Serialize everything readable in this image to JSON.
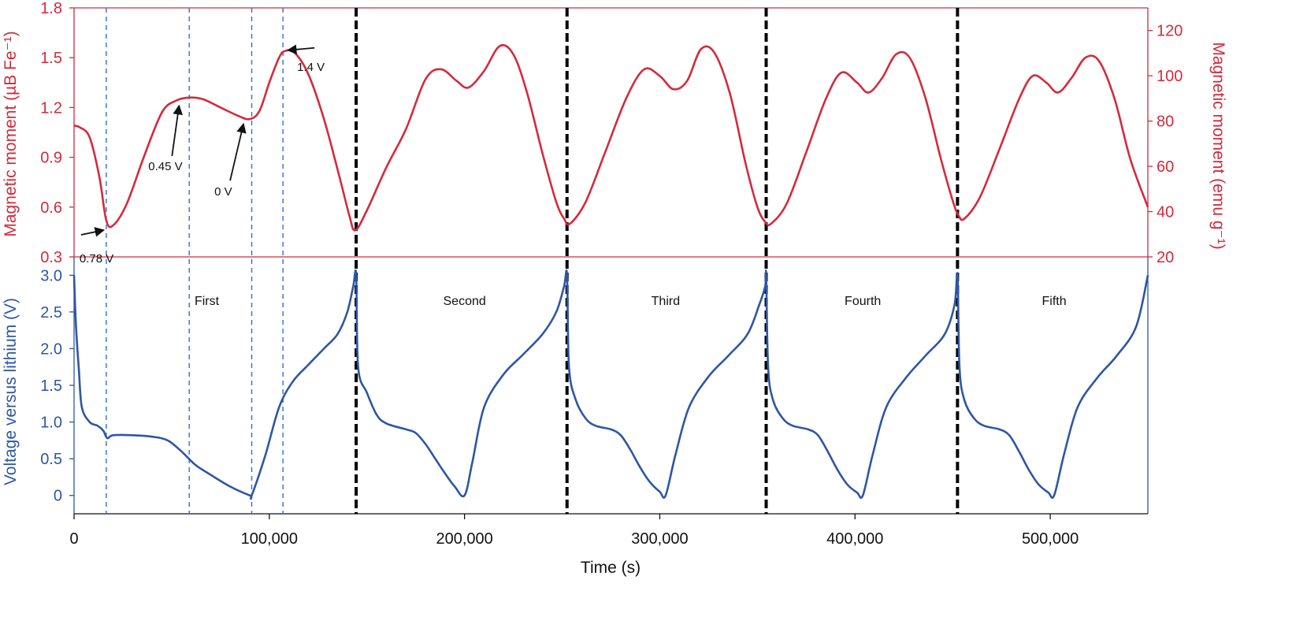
{
  "chart_data": {
    "type": "line",
    "x_axis": {
      "label": "Time (s)",
      "range": [
        0,
        550000
      ],
      "ticks": [
        0,
        100000,
        200000,
        300000,
        400000,
        500000
      ],
      "tick_labels": [
        "0",
        "100,000",
        "200,000",
        "300,000",
        "400,000",
        "500,000"
      ]
    },
    "top_panel": {
      "left_axis": {
        "label": "Magnetic moment (µB Fe⁻¹)",
        "range": [
          0.3,
          1.8
        ],
        "ticks": [
          0.3,
          0.6,
          0.9,
          1.2,
          1.5,
          1.8
        ],
        "tick_labels": [
          "0.3",
          "0.6",
          "0.9",
          "1.2",
          "1.5",
          "1.8"
        ]
      },
      "right_axis": {
        "label": "Magnetic moment (emu g⁻¹)",
        "range": [
          20,
          130
        ],
        "ticks": [
          20,
          40,
          60,
          80,
          100,
          120
        ],
        "tick_labels": [
          "20",
          "40",
          "60",
          "80",
          "100",
          "120"
        ]
      },
      "series": {
        "color": "#d42a3c",
        "x": [
          0,
          3000,
          8000,
          13000,
          16500,
          20000,
          27000,
          36000,
          45000,
          52000,
          59000,
          66000,
          75000,
          84000,
          90000,
          95000,
          100000,
          105000,
          108000,
          113000,
          120000,
          128000,
          136000,
          141000,
          144000,
          150000,
          160000,
          170000,
          180000,
          188000,
          196000,
          202000,
          210000,
          218000,
          225000,
          232000,
          240000,
          247000,
          251000,
          254000,
          262000,
          272000,
          283000,
          292000,
          300000,
          307000,
          314000,
          321000,
          328000,
          336000,
          344000,
          350000,
          354000,
          357000,
          365000,
          375000,
          385000,
          393000,
          401000,
          407000,
          414000,
          421000,
          428000,
          436000,
          444000,
          450000,
          453000,
          456000,
          464000,
          474000,
          484000,
          491000,
          498000,
          504000,
          511000,
          518000,
          525000,
          533000,
          541000,
          550000
        ],
        "y": [
          1.09,
          1.08,
          1.02,
          0.78,
          0.52,
          0.49,
          0.62,
          0.91,
          1.17,
          1.24,
          1.26,
          1.25,
          1.2,
          1.15,
          1.13,
          1.18,
          1.35,
          1.5,
          1.54,
          1.53,
          1.4,
          1.13,
          0.78,
          0.55,
          0.46,
          0.58,
          0.84,
          1.07,
          1.37,
          1.43,
          1.36,
          1.32,
          1.42,
          1.57,
          1.52,
          1.29,
          0.92,
          0.63,
          0.53,
          0.5,
          0.63,
          0.93,
          1.26,
          1.43,
          1.39,
          1.31,
          1.36,
          1.55,
          1.53,
          1.28,
          0.86,
          0.6,
          0.51,
          0.5,
          0.62,
          0.93,
          1.25,
          1.41,
          1.35,
          1.29,
          1.38,
          1.52,
          1.5,
          1.26,
          0.89,
          0.64,
          0.55,
          0.53,
          0.66,
          0.95,
          1.25,
          1.39,
          1.35,
          1.29,
          1.38,
          1.5,
          1.48,
          1.25,
          0.89,
          0.6
        ]
      },
      "annotations": [
        {
          "text": "0.78 V",
          "x": 16500,
          "y": 0.49
        },
        {
          "text": "0.45 V",
          "x": 55000,
          "y": 1.24
        },
        {
          "text": "0 V",
          "x": 88000,
          "y": 1.13
        },
        {
          "text": "1.4 V",
          "x": 107000,
          "y": 1.54
        }
      ]
    },
    "bottom_panel": {
      "left_axis": {
        "label": "Voltage versus lithium (V)",
        "range": [
          -0.25,
          3.25
        ],
        "ticks": [
          0,
          0.5,
          1.0,
          1.5,
          2.0,
          2.5,
          3.0
        ],
        "tick_labels": [
          "0",
          "0.5",
          "1.0",
          "1.5",
          "2.0",
          "2.5",
          "3.0"
        ]
      },
      "series": {
        "color": "#2e56a6",
        "x": [
          0,
          1000,
          2500,
          4000,
          8000,
          12000,
          15000,
          17000,
          20000,
          30000,
          40000,
          48000,
          55000,
          62000,
          70000,
          80000,
          90000,
          91000,
          98000,
          105000,
          112000,
          120000,
          128000,
          135000,
          140000,
          143000,
          144500,
          145500,
          150000,
          155000,
          160000,
          170000,
          175000,
          180000,
          185000,
          190000,
          195000,
          200000,
          204000,
          210000,
          220000,
          230000,
          240000,
          247000,
          251000,
          252500,
          253500,
          257000,
          262000,
          267000,
          275000,
          280000,
          285000,
          290000,
          295000,
          300000,
          303000,
          308000,
          315000,
          325000,
          335000,
          345000,
          351000,
          354000,
          354500,
          355500,
          358000,
          363000,
          368000,
          376000,
          381000,
          386000,
          391000,
          396000,
          401000,
          404000,
          409000,
          416000,
          426000,
          436000,
          446000,
          451000,
          452500,
          453500,
          456000,
          461000,
          466000,
          474000,
          479000,
          484000,
          489000,
          494000,
          499000,
          502000,
          507000,
          514000,
          524000,
          534000,
          544000,
          550000
        ],
        "y": [
          3.0,
          2.3,
          1.7,
          1.2,
          1.0,
          0.95,
          0.88,
          0.78,
          0.82,
          0.82,
          0.8,
          0.75,
          0.6,
          0.42,
          0.28,
          0.12,
          0.0,
          0.0,
          0.55,
          1.2,
          1.55,
          1.78,
          2.0,
          2.2,
          2.5,
          2.85,
          3.0,
          1.75,
          1.4,
          1.1,
          0.98,
          0.9,
          0.85,
          0.7,
          0.5,
          0.3,
          0.12,
          0.0,
          0.45,
          1.2,
          1.65,
          1.92,
          2.2,
          2.5,
          2.85,
          3.0,
          1.75,
          1.3,
          1.05,
          0.95,
          0.9,
          0.82,
          0.62,
          0.38,
          0.18,
          0.05,
          0.0,
          0.55,
          1.2,
          1.62,
          1.9,
          2.2,
          2.6,
          2.85,
          3.0,
          1.75,
          1.3,
          1.05,
          0.95,
          0.9,
          0.82,
          0.6,
          0.35,
          0.15,
          0.04,
          0.0,
          0.55,
          1.2,
          1.6,
          1.9,
          2.2,
          2.6,
          3.0,
          1.75,
          1.3,
          1.05,
          0.95,
          0.9,
          0.82,
          0.6,
          0.35,
          0.15,
          0.04,
          0.0,
          0.55,
          1.2,
          1.6,
          1.9,
          2.3,
          3.0
        ]
      },
      "cycle_labels": [
        {
          "text": "First",
          "x": 68000
        },
        {
          "text": "Second",
          "x": 200000
        },
        {
          "text": "Third",
          "x": 303000
        },
        {
          "text": "Fourth",
          "x": 404000
        },
        {
          "text": "Fifth",
          "x": 502000
        }
      ]
    },
    "cycle_dividers_x": [
      144500,
      252500,
      354500,
      452500
    ],
    "voltage_markers_x": [
      16500,
      59000,
      91000,
      107000
    ],
    "colors": {
      "moment": "#d42a3c",
      "voltage": "#2e56a6",
      "divider": "#000000",
      "marker": "#2e6fd0"
    }
  }
}
